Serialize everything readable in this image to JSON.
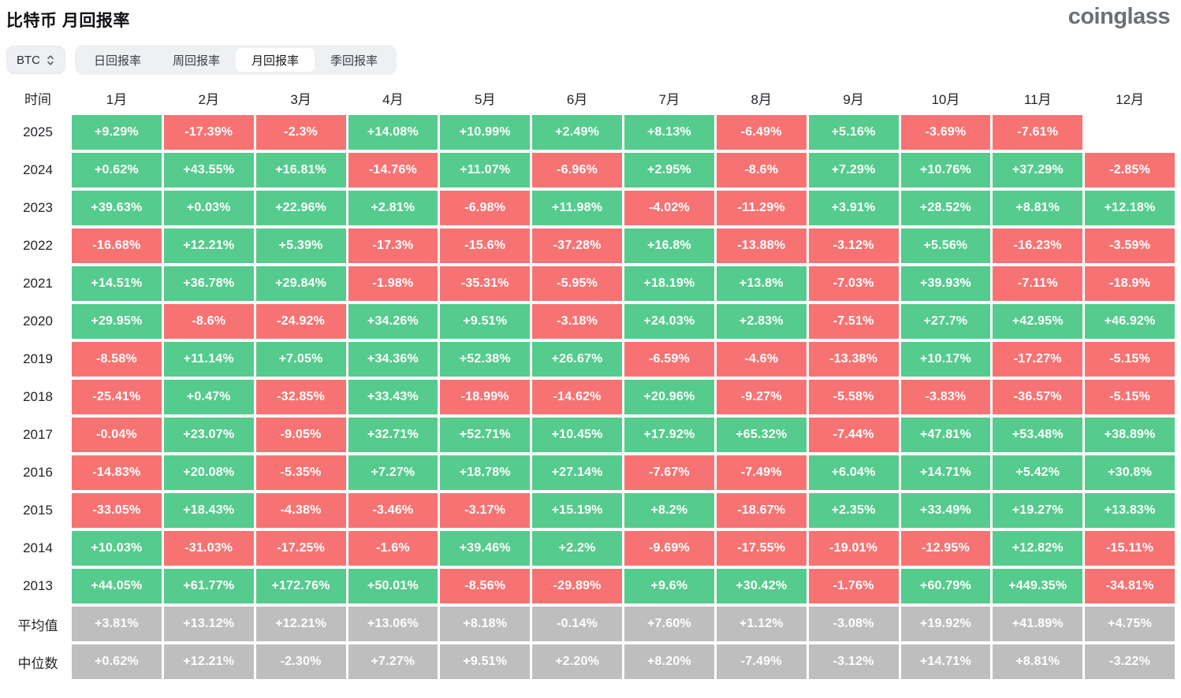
{
  "page": {
    "title": "比特币 月回报率",
    "logo_text": "coinglass"
  },
  "controls": {
    "coin_selector": {
      "value": "BTC"
    },
    "tabs": [
      {
        "label": "日回报率",
        "active": false
      },
      {
        "label": "周回报率",
        "active": false
      },
      {
        "label": "月回报率",
        "active": true
      },
      {
        "label": "季回报率",
        "active": false
      }
    ]
  },
  "chart_data": {
    "type": "heatmap",
    "title": "比特币 月回报率",
    "row_header": "时间",
    "columns": [
      "1月",
      "2月",
      "3月",
      "4月",
      "5月",
      "6月",
      "7月",
      "8月",
      "9月",
      "10月",
      "11月",
      "12月"
    ],
    "rows": [
      {
        "label": "2025",
        "kind": "year",
        "values": [
          "+9.29%",
          "-17.39%",
          "-2.3%",
          "+14.08%",
          "+10.99%",
          "+2.49%",
          "+8.13%",
          "-6.49%",
          "+5.16%",
          "-3.69%",
          "-7.61%",
          ""
        ]
      },
      {
        "label": "2024",
        "kind": "year",
        "values": [
          "+0.62%",
          "+43.55%",
          "+16.81%",
          "-14.76%",
          "+11.07%",
          "-6.96%",
          "+2.95%",
          "-8.6%",
          "+7.29%",
          "+10.76%",
          "+37.29%",
          "-2.85%"
        ]
      },
      {
        "label": "2023",
        "kind": "year",
        "values": [
          "+39.63%",
          "+0.03%",
          "+22.96%",
          "+2.81%",
          "-6.98%",
          "+11.98%",
          "-4.02%",
          "-11.29%",
          "+3.91%",
          "+28.52%",
          "+8.81%",
          "+12.18%"
        ]
      },
      {
        "label": "2022",
        "kind": "year",
        "values": [
          "-16.68%",
          "+12.21%",
          "+5.39%",
          "-17.3%",
          "-15.6%",
          "-37.28%",
          "+16.8%",
          "-13.88%",
          "-3.12%",
          "+5.56%",
          "-16.23%",
          "-3.59%"
        ]
      },
      {
        "label": "2021",
        "kind": "year",
        "values": [
          "+14.51%",
          "+36.78%",
          "+29.84%",
          "-1.98%",
          "-35.31%",
          "-5.95%",
          "+18.19%",
          "+13.8%",
          "-7.03%",
          "+39.93%",
          "-7.11%",
          "-18.9%"
        ]
      },
      {
        "label": "2020",
        "kind": "year",
        "values": [
          "+29.95%",
          "-8.6%",
          "-24.92%",
          "+34.26%",
          "+9.51%",
          "-3.18%",
          "+24.03%",
          "+2.83%",
          "-7.51%",
          "+27.7%",
          "+42.95%",
          "+46.92%"
        ]
      },
      {
        "label": "2019",
        "kind": "year",
        "values": [
          "-8.58%",
          "+11.14%",
          "+7.05%",
          "+34.36%",
          "+52.38%",
          "+26.67%",
          "-6.59%",
          "-4.6%",
          "-13.38%",
          "+10.17%",
          "-17.27%",
          "-5.15%"
        ]
      },
      {
        "label": "2018",
        "kind": "year",
        "values": [
          "-25.41%",
          "+0.47%",
          "-32.85%",
          "+33.43%",
          "-18.99%",
          "-14.62%",
          "+20.96%",
          "-9.27%",
          "-5.58%",
          "-3.83%",
          "-36.57%",
          "-5.15%"
        ]
      },
      {
        "label": "2017",
        "kind": "year",
        "values": [
          "-0.04%",
          "+23.07%",
          "-9.05%",
          "+32.71%",
          "+52.71%",
          "+10.45%",
          "+17.92%",
          "+65.32%",
          "-7.44%",
          "+47.81%",
          "+53.48%",
          "+38.89%"
        ]
      },
      {
        "label": "2016",
        "kind": "year",
        "values": [
          "-14.83%",
          "+20.08%",
          "-5.35%",
          "+7.27%",
          "+18.78%",
          "+27.14%",
          "-7.67%",
          "-7.49%",
          "+6.04%",
          "+14.71%",
          "+5.42%",
          "+30.8%"
        ]
      },
      {
        "label": "2015",
        "kind": "year",
        "values": [
          "-33.05%",
          "+18.43%",
          "-4.38%",
          "-3.46%",
          "-3.17%",
          "+15.19%",
          "+8.2%",
          "-18.67%",
          "+2.35%",
          "+33.49%",
          "+19.27%",
          "+13.83%"
        ]
      },
      {
        "label": "2014",
        "kind": "year",
        "values": [
          "+10.03%",
          "-31.03%",
          "-17.25%",
          "-1.6%",
          "+39.46%",
          "+2.2%",
          "-9.69%",
          "-17.55%",
          "-19.01%",
          "-12.95%",
          "+12.82%",
          "-15.11%"
        ]
      },
      {
        "label": "2013",
        "kind": "year",
        "values": [
          "+44.05%",
          "+61.77%",
          "+172.76%",
          "+50.01%",
          "-8.56%",
          "-29.89%",
          "+9.6%",
          "+30.42%",
          "-1.76%",
          "+60.79%",
          "+449.35%",
          "-34.81%"
        ]
      },
      {
        "label": "平均值",
        "kind": "summary",
        "values": [
          "+3.81%",
          "+13.12%",
          "+12.21%",
          "+13.06%",
          "+8.18%",
          "-0.14%",
          "+7.60%",
          "+1.12%",
          "-3.08%",
          "+19.92%",
          "+41.89%",
          "+4.75%"
        ]
      },
      {
        "label": "中位数",
        "kind": "summary",
        "values": [
          "+0.62%",
          "+12.21%",
          "-2.30%",
          "+7.27%",
          "+9.51%",
          "+2.20%",
          "+8.20%",
          "-7.49%",
          "-3.12%",
          "+14.71%",
          "+8.81%",
          "-3.22%"
        ]
      }
    ],
    "colors": {
      "positive": "#55cb8d",
      "negative": "#f77373",
      "summary": "#bebebe"
    },
    "legend": "green = positive monthly return, red = negative monthly return, gray = average/median summary rows"
  }
}
